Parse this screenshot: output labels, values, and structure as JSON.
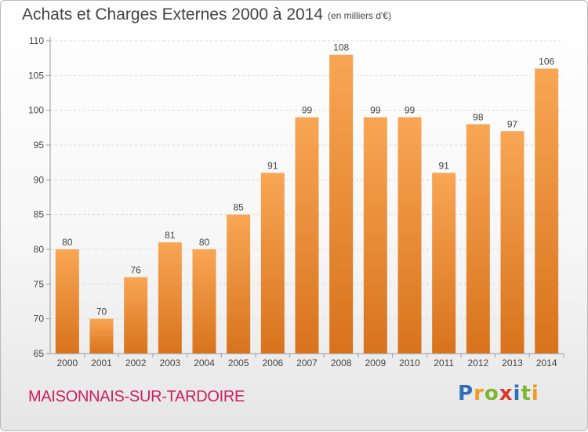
{
  "title": "Achats et Charges Externes 2000 à 2014",
  "subtitle": "(en milliers d'€)",
  "commune": "MAISONNAIS-SUR-TARDOIRE",
  "brand": {
    "letters": [
      "P",
      "r",
      "o",
      "x",
      "i",
      "t",
      "i"
    ],
    "colors": [
      "#2f6fb7",
      "#f29a1f",
      "#7cb82f",
      "#d43a2a",
      "#2f6fb7",
      "#7cb82f",
      "#f29a1f"
    ]
  },
  "colors": {
    "bar_top": "#f8a655",
    "bar_bottom": "#d8731c",
    "axis": "#999999",
    "grid": "#d9d9d9",
    "text": "#444444"
  },
  "chart_data": {
    "type": "bar",
    "categories": [
      "2000",
      "2001",
      "2002",
      "2003",
      "2004",
      "2005",
      "2006",
      "2007",
      "2008",
      "2009",
      "2010",
      "2011",
      "2012",
      "2013",
      "2014"
    ],
    "values": [
      80,
      70,
      76,
      81,
      80,
      85,
      91,
      99,
      108,
      99,
      99,
      91,
      98,
      97,
      106
    ],
    "ylim": [
      65,
      110
    ],
    "yticks": [
      65,
      70,
      75,
      80,
      85,
      90,
      95,
      100,
      105,
      110
    ],
    "grid": true
  }
}
